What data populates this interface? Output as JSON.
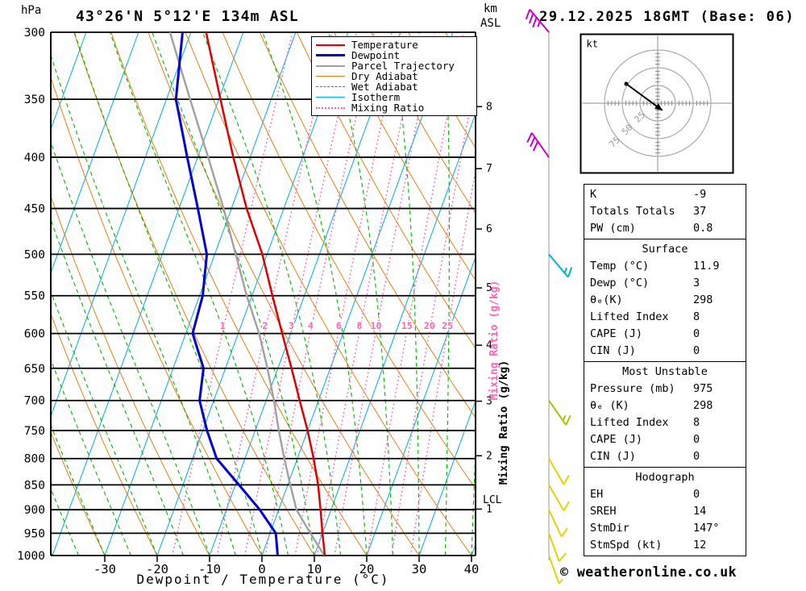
{
  "header": {
    "station": "43°26'N 5°12'E 134m ASL",
    "datetime": "29.12.2025 18GMT (Base: 06)"
  },
  "axes": {
    "pressure_unit": "hPa",
    "altitude_unit_line1": "km",
    "altitude_unit_line2": "ASL",
    "pressure_ticks": [
      300,
      350,
      400,
      450,
      500,
      550,
      600,
      650,
      700,
      750,
      800,
      850,
      900,
      950,
      1000
    ],
    "temp_ticks": [
      -30,
      -20,
      -10,
      0,
      10,
      20,
      30,
      40
    ],
    "km_ticks": [
      1,
      2,
      3,
      4,
      5,
      6,
      7,
      8
    ],
    "xlabel": "Dewpoint / Temperature (°C)",
    "mixing_ratio_label": "Mixing Ratio (g/kg)",
    "lcl_label": "LCL"
  },
  "legend": [
    {
      "label": "Temperature",
      "color": "#dd0000",
      "style": "solid",
      "width": 2
    },
    {
      "label": "Dewpoint",
      "color": "#0000cc",
      "style": "solid",
      "width": 3
    },
    {
      "label": "Parcel Trajectory",
      "color": "#a0a0a0",
      "style": "solid",
      "width": 2
    },
    {
      "label": "Dry Adiabat",
      "color": "#e08214",
      "style": "solid",
      "width": 1
    },
    {
      "label": "Wet Adiabat",
      "color": "#00b400",
      "style": "dashed",
      "width": 1
    },
    {
      "label": "Isotherm",
      "color": "#00aadd",
      "style": "solid",
      "width": 1
    },
    {
      "label": "Mixing Ratio",
      "color": "#ff64b4",
      "style": "dotted",
      "width": 2
    }
  ],
  "chart_data": {
    "type": "line",
    "subtype": "skew-t-log-p-sounding",
    "title": "43°26'N 5°12'E 134m ASL",
    "xlabel": "Dewpoint / Temperature (°C)",
    "pressure_range_hpa": [
      300,
      1000
    ],
    "temp_axis_range_c": [
      -40,
      40
    ],
    "grid": {
      "isotherm_step_c": 10,
      "dry_adiabat_step_c": 10,
      "wet_adiabat_step_c": 5
    },
    "mixing_ratio_lines_gkg": [
      1,
      2,
      3,
      4,
      6,
      8,
      10,
      15,
      20,
      25
    ],
    "lcl_pressure_hpa": 880,
    "temperature_profile_p_t": [
      [
        1000,
        12.0
      ],
      [
        950,
        10.0
      ],
      [
        900,
        8.0
      ],
      [
        850,
        5.8
      ],
      [
        800,
        3.1
      ],
      [
        750,
        0.0
      ],
      [
        700,
        -3.6
      ],
      [
        650,
        -7.4
      ],
      [
        600,
        -11.6
      ],
      [
        550,
        -16.1
      ],
      [
        500,
        -20.9
      ],
      [
        450,
        -27.1
      ],
      [
        400,
        -33.2
      ],
      [
        350,
        -39.7
      ],
      [
        300,
        -47.1
      ]
    ],
    "dewpoint_profile_p_t": [
      [
        1000,
        3.0
      ],
      [
        950,
        1.1
      ],
      [
        900,
        -3.6
      ],
      [
        850,
        -9.3
      ],
      [
        800,
        -15.4
      ],
      [
        750,
        -19.2
      ],
      [
        700,
        -22.7
      ],
      [
        650,
        -24.2
      ],
      [
        600,
        -28.7
      ],
      [
        550,
        -29.4
      ],
      [
        500,
        -31.5
      ],
      [
        450,
        -36.4
      ],
      [
        400,
        -42.0
      ],
      [
        350,
        -48.2
      ],
      [
        300,
        -51.6
      ]
    ],
    "parcel_profile_p_t": [
      [
        1000,
        11.9
      ],
      [
        950,
        7.7
      ],
      [
        900,
        3.4
      ],
      [
        850,
        0.5
      ],
      [
        800,
        -2.5
      ],
      [
        750,
        -5.5
      ],
      [
        700,
        -8.5
      ],
      [
        650,
        -12.0
      ],
      [
        600,
        -16.0
      ],
      [
        550,
        -21.0
      ],
      [
        500,
        -26.0
      ],
      [
        450,
        -31.5
      ],
      [
        400,
        -38.0
      ],
      [
        350,
        -45.5
      ],
      [
        300,
        -54.0
      ]
    ],
    "wind_barbs": [
      {
        "pressure_hpa": 300,
        "direction_deg": 320,
        "speed_kt": 35,
        "color": "#c800c8"
      },
      {
        "pressure_hpa": 400,
        "direction_deg": 325,
        "speed_kt": 30,
        "color": "#c800c8"
      },
      {
        "pressure_hpa": 500,
        "direction_deg": 140,
        "speed_kt": 15,
        "color": "#00b4d2"
      },
      {
        "pressure_hpa": 700,
        "direction_deg": 145,
        "speed_kt": 15,
        "color": "#a0c800"
      },
      {
        "pressure_hpa": 800,
        "direction_deg": 150,
        "speed_kt": 10,
        "color": "#e6d200"
      },
      {
        "pressure_hpa": 850,
        "direction_deg": 150,
        "speed_kt": 10,
        "color": "#e6d200"
      },
      {
        "pressure_hpa": 900,
        "direction_deg": 155,
        "speed_kt": 10,
        "color": "#e6d200"
      },
      {
        "pressure_hpa": 950,
        "direction_deg": 160,
        "speed_kt": 10,
        "color": "#e6d200"
      },
      {
        "pressure_hpa": 1000,
        "direction_deg": 160,
        "speed_kt": 5,
        "color": "#e6d200"
      }
    ]
  },
  "hodograph": {
    "unit_label": "kt",
    "ring_labels": [
      "25",
      "50",
      "75"
    ],
    "ring_radii_kt": [
      25,
      50,
      75
    ]
  },
  "stats": {
    "groups": [
      {
        "header": "",
        "rows": [
          [
            "K",
            "-9"
          ],
          [
            "Totals Totals",
            "37"
          ],
          [
            "PW (cm)",
            "0.8"
          ]
        ]
      },
      {
        "header": "Surface",
        "rows": [
          [
            "Temp (°C)",
            "11.9"
          ],
          [
            "Dewp (°C)",
            "3"
          ],
          [
            "θₑ(K)",
            "298"
          ],
          [
            "Lifted Index",
            "8"
          ],
          [
            "CAPE (J)",
            "0"
          ],
          [
            "CIN (J)",
            "0"
          ]
        ]
      },
      {
        "header": "Most Unstable",
        "rows": [
          [
            "Pressure (mb)",
            "975"
          ],
          [
            "θₑ (K)",
            "298"
          ],
          [
            "Lifted Index",
            "8"
          ],
          [
            "CAPE (J)",
            "0"
          ],
          [
            "CIN (J)",
            "0"
          ]
        ]
      },
      {
        "header": "Hodograph",
        "rows": [
          [
            "EH",
            "0"
          ],
          [
            "SREH",
            "14"
          ],
          [
            "StmDir",
            "147°"
          ],
          [
            "StmSpd (kt)",
            "12"
          ]
        ]
      }
    ]
  },
  "footer": {
    "copyright": "© weatheronline.co.uk"
  }
}
